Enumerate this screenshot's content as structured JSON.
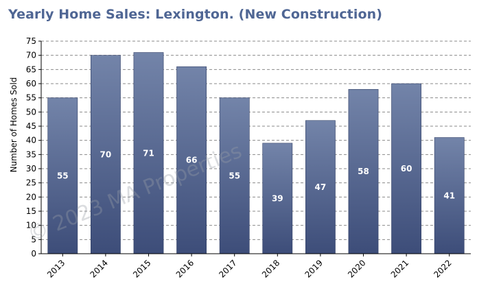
{
  "chart_data": {
    "type": "bar",
    "title": "Yearly Home Sales: Lexington. (New Construction)",
    "ylabel": "Number of Homes Sold",
    "xlabel": "",
    "categories": [
      "2013",
      "2014",
      "2015",
      "2016",
      "2017",
      "2018",
      "2019",
      "2020",
      "2021",
      "2022"
    ],
    "values": [
      55,
      70,
      71,
      66,
      55,
      39,
      47,
      58,
      60,
      41
    ],
    "ylim": [
      0,
      75
    ],
    "yticks": [
      0,
      5,
      10,
      15,
      20,
      25,
      30,
      35,
      40,
      45,
      50,
      55,
      60,
      65,
      70,
      75
    ],
    "grid": true,
    "legend": "none",
    "colors": {
      "bar_top": "#7384a9",
      "bar_bottom": "#3d4d79",
      "title": "#4f6694"
    },
    "watermark": "© 2023 MA Properties"
  }
}
